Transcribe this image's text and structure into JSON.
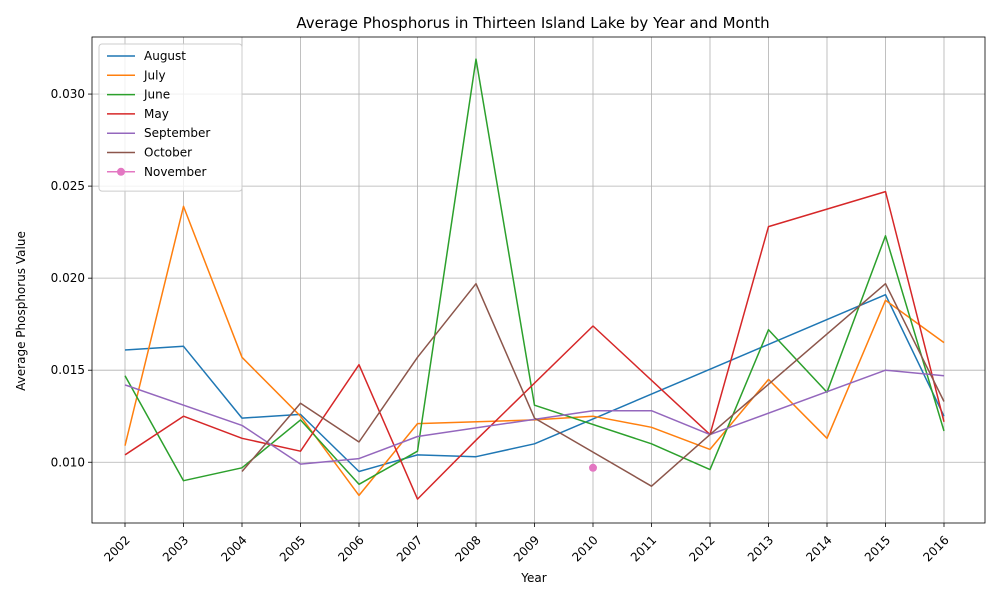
{
  "chart_data": {
    "type": "line",
    "title": "Average Phosphorus in Thirteen Island Lake by Year and Month",
    "xlabel": "Year",
    "ylabel": "Average Phosphorus Value",
    "x": [
      "2002",
      "2003",
      "2004",
      "2005",
      "2006",
      "2007",
      "2008",
      "2009",
      "2010",
      "2011",
      "2012",
      "2013",
      "2014",
      "2015",
      "2016"
    ],
    "ylim": [
      0.0067,
      0.0331
    ],
    "yticks": [
      "0.010",
      "0.015",
      "0.020",
      "0.025",
      "0.030"
    ],
    "ytick_values": [
      0.01,
      0.015,
      0.02,
      0.025,
      0.03
    ],
    "grid": true,
    "legend_position": "top-left",
    "series": [
      {
        "name": "August",
        "color": "#1f77b4",
        "marker": "none",
        "points": [
          [
            2002,
            0.0161
          ],
          [
            2003,
            0.0163
          ],
          [
            2004,
            0.0124
          ],
          [
            2005,
            0.0126
          ],
          [
            2006,
            0.0095
          ],
          [
            2007,
            0.0104
          ],
          [
            2008,
            0.0103
          ],
          [
            2009,
            0.011
          ],
          [
            2015,
            0.0191
          ],
          [
            2016,
            0.0125
          ]
        ]
      },
      {
        "name": "July",
        "color": "#ff7f0e",
        "marker": "none",
        "points": [
          [
            2002,
            0.0109
          ],
          [
            2003,
            0.0239
          ],
          [
            2004,
            0.0157
          ],
          [
            2005,
            0.0125
          ],
          [
            2006,
            0.0082
          ],
          [
            2007,
            0.0121
          ],
          [
            2009,
            0.0123
          ],
          [
            2010,
            0.0125
          ],
          [
            2011,
            0.0119
          ],
          [
            2012,
            0.0107
          ],
          [
            2013,
            0.0145
          ],
          [
            2014,
            0.0113
          ],
          [
            2015,
            0.0188
          ],
          [
            2016,
            0.0165
          ]
        ]
      },
      {
        "name": "June",
        "color": "#2ca02c",
        "marker": "none",
        "points": [
          [
            2002,
            0.0147
          ],
          [
            2003,
            0.009
          ],
          [
            2004,
            0.0097
          ],
          [
            2005,
            0.0123
          ],
          [
            2006,
            0.0088
          ],
          [
            2007,
            0.0106
          ],
          [
            2008,
            0.0319
          ],
          [
            2009,
            0.0131
          ],
          [
            2011,
            0.011
          ],
          [
            2012,
            0.0096
          ],
          [
            2013,
            0.0172
          ],
          [
            2014,
            0.0138
          ],
          [
            2015,
            0.0223
          ],
          [
            2016,
            0.0117
          ]
        ]
      },
      {
        "name": "May",
        "color": "#d62728",
        "marker": "none",
        "points": [
          [
            2002,
            0.0104
          ],
          [
            2003,
            0.0125
          ],
          [
            2004,
            0.0113
          ],
          [
            2005,
            0.0106
          ],
          [
            2006,
            0.0153
          ],
          [
            2007,
            0.008
          ],
          [
            2008,
            0.0112
          ],
          [
            2010,
            0.0174
          ],
          [
            2012,
            0.0115
          ],
          [
            2013,
            0.0228
          ],
          [
            2015,
            0.0247
          ],
          [
            2016,
            0.0122
          ]
        ]
      },
      {
        "name": "September",
        "color": "#9467bd",
        "marker": "none",
        "points": [
          [
            2002,
            0.0142
          ],
          [
            2004,
            0.012
          ],
          [
            2005,
            0.0099
          ],
          [
            2006,
            0.0102
          ],
          [
            2007,
            0.0114
          ],
          [
            2010,
            0.0128
          ],
          [
            2011,
            0.0128
          ],
          [
            2012,
            0.0115
          ],
          [
            2015,
            0.015
          ],
          [
            2016,
            0.0147
          ]
        ]
      },
      {
        "name": "October",
        "color": "#8c564b",
        "marker": "none",
        "points": [
          [
            2004,
            0.0095
          ],
          [
            2005,
            0.0132
          ],
          [
            2006,
            0.0111
          ],
          [
            2007,
            0.0157
          ],
          [
            2008,
            0.0197
          ],
          [
            2009,
            0.0124
          ],
          [
            2011,
            0.0087
          ],
          [
            2012,
            0.0115
          ],
          [
            2015,
            0.0197
          ],
          [
            2016,
            0.0133
          ]
        ]
      },
      {
        "name": "November",
        "color": "#e377c2",
        "marker": "circle",
        "points": [
          [
            2010,
            0.0097
          ]
        ]
      }
    ]
  }
}
